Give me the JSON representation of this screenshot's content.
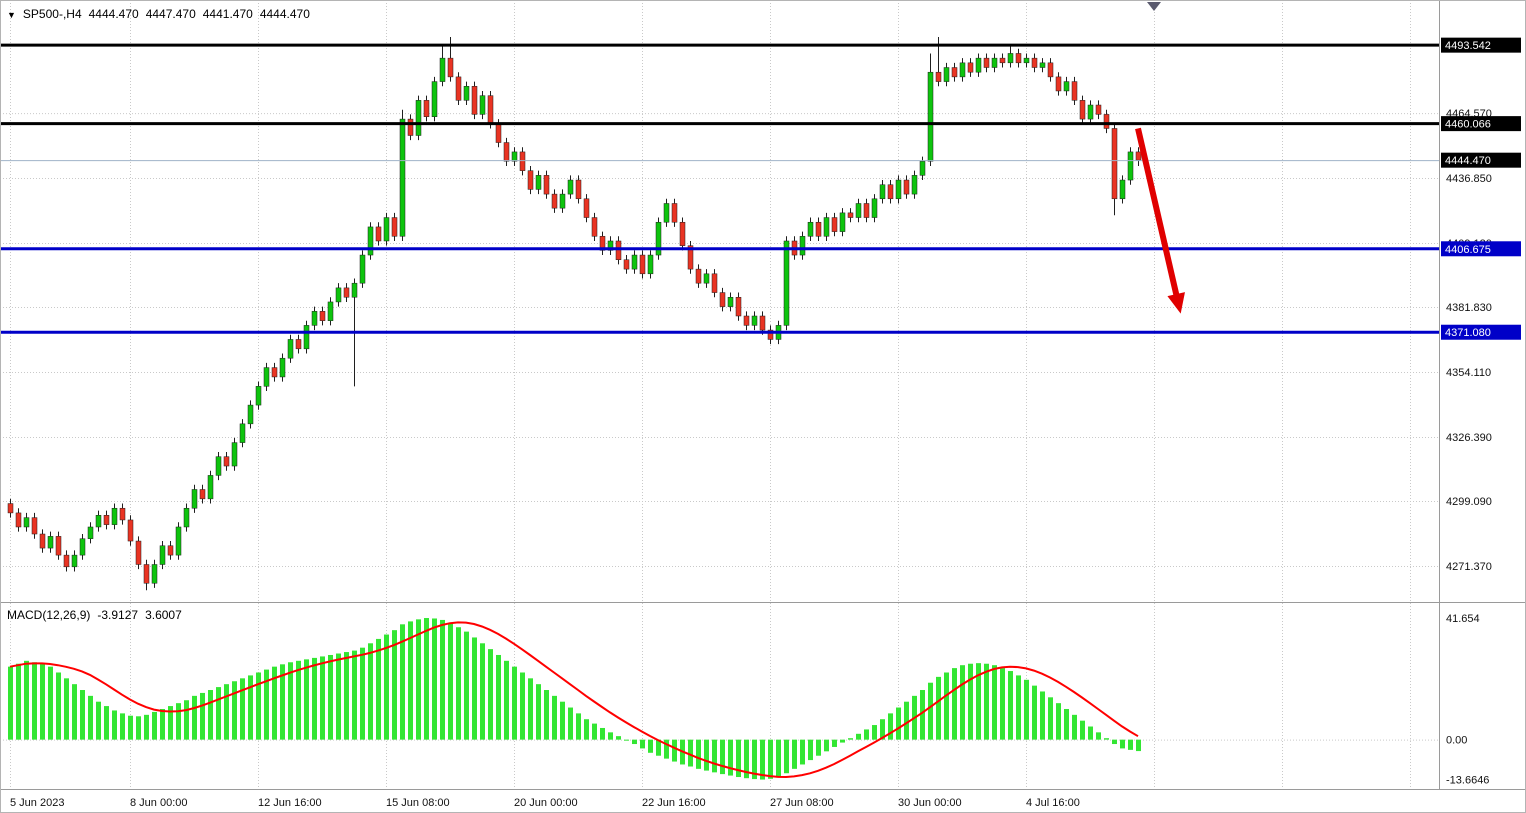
{
  "symbol_info": {
    "dropdown_icon": "▼",
    "symbol": "SP500-,H4",
    "open": "4444.470",
    "high": "4447.470",
    "low": "4441.470",
    "close": "4444.470"
  },
  "macd_info": {
    "label": "MACD(12,26,9)",
    "main_value": "-3.9127",
    "signal_value": "3.6007"
  },
  "colors": {
    "background": "#FFFFFF",
    "grid": "#C9C9C9",
    "candle_up": "#0EC40E",
    "candle_down": "#E93423",
    "candle_wick": "#1F1F1F",
    "candle_border": "#1F1F1F",
    "macd_histogram": "#33E633",
    "macd_signal": "#FF0000",
    "current_price_line": "#9FB3C8",
    "current_price_badge_bg": "#000000",
    "arrow": "#E00000",
    "shift_marker": "#5A5A6E",
    "separator": "#9A9A9A",
    "frame": "#B4B4B4"
  },
  "chart_data": [
    {
      "type": "candlestick",
      "title": "SP500-,H4",
      "x_labels": [
        {
          "text": "5 Jun 2023",
          "bar": 0
        },
        {
          "text": "8 Jun 00:00",
          "bar": 15
        },
        {
          "text": "12 Jun 16:00",
          "bar": 31
        },
        {
          "text": "15 Jun 08:00",
          "bar": 47
        },
        {
          "text": "20 Jun 00:00",
          "bar": 63
        },
        {
          "text": "22 Jun 16:00",
          "bar": 79
        },
        {
          "text": "27 Jun 08:00",
          "bar": 95
        },
        {
          "text": "30 Jun 00:00",
          "bar": 111
        },
        {
          "text": "4 Jul 16:00",
          "bar": 127
        }
      ],
      "extra_grid_bars": [
        143,
        159,
        175
      ],
      "shift_marker_bar": 143,
      "y_axis_range": [
        4256.0,
        4512.8
      ],
      "price_gridlines": [
        {
          "text": "4464.570",
          "value": 4464.57
        },
        {
          "text": "4436.850",
          "value": 4436.85
        },
        {
          "text": "4409.120",
          "value": 4409.12
        },
        {
          "text": "4381.830",
          "value": 4381.83
        },
        {
          "text": "4354.110",
          "value": 4354.11
        },
        {
          "text": "4326.390",
          "value": 4326.39
        },
        {
          "text": "4299.090",
          "value": 4299.09
        },
        {
          "text": "4271.370",
          "value": 4271.37
        }
      ],
      "horizontal_lines": [
        {
          "price": 4493.542,
          "label": "4493.542",
          "color": "#000000"
        },
        {
          "price": 4460.066,
          "label": "4460.066",
          "color": "#000000"
        },
        {
          "price": 4406.675,
          "label": "4406.675",
          "color": "#0000C8"
        },
        {
          "price": 4371.08,
          "label": "4371.080",
          "color": "#0000C8"
        }
      ],
      "current_price": {
        "price": 4444.47,
        "label": "4444.470"
      },
      "annotation_arrow": {
        "from_bar": 141,
        "from_price": 4458,
        "to_bar": 146,
        "to_price": 4384
      },
      "candles": [
        [
          4298,
          4300,
          4292,
          4294
        ],
        [
          4294,
          4296,
          4286,
          4288
        ],
        [
          4288,
          4294,
          4286,
          4292
        ],
        [
          4292,
          4294,
          4283,
          4285
        ],
        [
          4285,
          4287,
          4277,
          4279
        ],
        [
          4279,
          4286,
          4277,
          4284
        ],
        [
          4284,
          4286,
          4274,
          4276
        ],
        [
          4276,
          4278,
          4269,
          4271
        ],
        [
          4271,
          4278,
          4269,
          4276
        ],
        [
          4276,
          4285,
          4274,
          4283
        ],
        [
          4283,
          4290,
          4281,
          4288
        ],
        [
          4288,
          4295,
          4286,
          4293
        ],
        [
          4293,
          4295,
          4287,
          4289
        ],
        [
          4289,
          4298,
          4287,
          4296
        ],
        [
          4296,
          4298,
          4289,
          4291
        ],
        [
          4291,
          4293,
          4280,
          4282
        ],
        [
          4282,
          4284,
          4270,
          4272
        ],
        [
          4272,
          4274,
          4261,
          4264
        ],
        [
          4264,
          4274,
          4262,
          4272
        ],
        [
          4272,
          4282,
          4270,
          4280
        ],
        [
          4280,
          4282,
          4274,
          4276
        ],
        [
          4276,
          4290,
          4274,
          4288
        ],
        [
          4288,
          4298,
          4286,
          4296
        ],
        [
          4296,
          4306,
          4294,
          4304
        ],
        [
          4304,
          4306,
          4298,
          4300
        ],
        [
          4300,
          4312,
          4298,
          4310
        ],
        [
          4310,
          4320,
          4308,
          4318
        ],
        [
          4318,
          4320,
          4312,
          4314
        ],
        [
          4314,
          4326,
          4312,
          4324
        ],
        [
          4324,
          4334,
          4322,
          4332
        ],
        [
          4332,
          4342,
          4330,
          4340
        ],
        [
          4340,
          4350,
          4338,
          4348
        ],
        [
          4348,
          4358,
          4346,
          4356
        ],
        [
          4356,
          4358,
          4350,
          4352
        ],
        [
          4352,
          4362,
          4350,
          4360
        ],
        [
          4360,
          4370,
          4358,
          4368
        ],
        [
          4368,
          4370,
          4362,
          4364
        ],
        [
          4364,
          4376,
          4362,
          4374
        ],
        [
          4374,
          4382,
          4372,
          4380
        ],
        [
          4380,
          4382,
          4374,
          4376
        ],
        [
          4376,
          4386,
          4374,
          4384
        ],
        [
          4384,
          4392,
          4382,
          4390
        ],
        [
          4390,
          4392,
          4384,
          4386
        ],
        [
          4386,
          4394,
          4348,
          4392
        ],
        [
          4392,
          4406,
          4390,
          4404
        ],
        [
          4404,
          4418,
          4402,
          4416
        ],
        [
          4416,
          4418,
          4408,
          4410
        ],
        [
          4410,
          4422,
          4408,
          4420
        ],
        [
          4420,
          4422,
          4410,
          4412
        ],
        [
          4412,
          4466,
          4410,
          4462
        ],
        [
          4462,
          4464,
          4453,
          4455
        ],
        [
          4455,
          4472,
          4453,
          4470
        ],
        [
          4470,
          4472,
          4461,
          4463
        ],
        [
          4463,
          4480,
          4461,
          4478
        ],
        [
          4478,
          4494,
          4476,
          4488
        ],
        [
          4488,
          4497,
          4478,
          4480
        ],
        [
          4480,
          4482,
          4468,
          4470
        ],
        [
          4470,
          4478,
          4468,
          4476
        ],
        [
          4476,
          4478,
          4462,
          4464
        ],
        [
          4464,
          4474,
          4462,
          4472
        ],
        [
          4472,
          4474,
          4458,
          4460
        ],
        [
          4460,
          4462,
          4450,
          4452
        ],
        [
          4452,
          4454,
          4442,
          4444
        ],
        [
          4444,
          4450,
          4442,
          4448
        ],
        [
          4448,
          4450,
          4438,
          4440
        ],
        [
          4440,
          4442,
          4430,
          4432
        ],
        [
          4432,
          4440,
          4430,
          4438
        ],
        [
          4438,
          4440,
          4428,
          4430
        ],
        [
          4430,
          4432,
          4422,
          4424
        ],
        [
          4424,
          4432,
          4422,
          4430
        ],
        [
          4430,
          4438,
          4428,
          4436
        ],
        [
          4436,
          4438,
          4426,
          4428
        ],
        [
          4428,
          4430,
          4418,
          4420
        ],
        [
          4420,
          4422,
          4410,
          4412
        ],
        [
          4412,
          4414,
          4404,
          4406
        ],
        [
          4406,
          4412,
          4404,
          4410
        ],
        [
          4410,
          4412,
          4400,
          4402
        ],
        [
          4402,
          4404,
          4396,
          4398
        ],
        [
          4398,
          4406,
          4396,
          4404
        ],
        [
          4404,
          4406,
          4394,
          4396
        ],
        [
          4396,
          4406,
          4394,
          4404
        ],
        [
          4404,
          4420,
          4402,
          4418
        ],
        [
          4418,
          4428,
          4416,
          4426
        ],
        [
          4426,
          4428,
          4416,
          4418
        ],
        [
          4418,
          4420,
          4406,
          4408
        ],
        [
          4408,
          4410,
          4396,
          4398
        ],
        [
          4398,
          4400,
          4390,
          4392
        ],
        [
          4392,
          4398,
          4390,
          4396
        ],
        [
          4396,
          4398,
          4386,
          4388
        ],
        [
          4388,
          4390,
          4380,
          4382
        ],
        [
          4382,
          4388,
          4380,
          4386
        ],
        [
          4386,
          4388,
          4376,
          4378
        ],
        [
          4378,
          4380,
          4372,
          4374
        ],
        [
          4374,
          4380,
          4372,
          4378
        ],
        [
          4378,
          4380,
          4370,
          4372
        ],
        [
          4372,
          4374,
          4366,
          4368
        ],
        [
          4368,
          4376,
          4366,
          4374
        ],
        [
          4374,
          4412,
          4372,
          4410
        ],
        [
          4410,
          4412,
          4402,
          4404
        ],
        [
          4404,
          4414,
          4402,
          4412
        ],
        [
          4412,
          4420,
          4410,
          4418
        ],
        [
          4418,
          4420,
          4410,
          4412
        ],
        [
          4412,
          4422,
          4410,
          4420
        ],
        [
          4420,
          4422,
          4412,
          4414
        ],
        [
          4414,
          4424,
          4412,
          4422
        ],
        [
          4422,
          4424,
          4418,
          4420
        ],
        [
          4420,
          4428,
          4418,
          4426
        ],
        [
          4426,
          4428,
          4418,
          4420
        ],
        [
          4420,
          4430,
          4418,
          4428
        ],
        [
          4428,
          4436,
          4426,
          4434
        ],
        [
          4434,
          4436,
          4426,
          4428
        ],
        [
          4428,
          4438,
          4426,
          4436
        ],
        [
          4436,
          4438,
          4428,
          4430
        ],
        [
          4430,
          4440,
          4428,
          4438
        ],
        [
          4438,
          4446,
          4436,
          4444
        ],
        [
          4444,
          4490,
          4442,
          4482
        ],
        [
          4482,
          4497,
          4476,
          4478
        ],
        [
          4478,
          4486,
          4476,
          4484
        ],
        [
          4484,
          4486,
          4478,
          4480
        ],
        [
          4480,
          4488,
          4478,
          4486
        ],
        [
          4486,
          4488,
          4480,
          4482
        ],
        [
          4482,
          4490,
          4480,
          4488
        ],
        [
          4488,
          4490,
          4482,
          4484
        ],
        [
          4484,
          4490,
          4482,
          4488
        ],
        [
          4488,
          4490,
          4484,
          4486
        ],
        [
          4486,
          4494,
          4484,
          4490
        ],
        [
          4490,
          4492,
          4484,
          4486
        ],
        [
          4486,
          4490,
          4484,
          4488
        ],
        [
          4488,
          4490,
          4482,
          4484
        ],
        [
          4484,
          4488,
          4482,
          4486
        ],
        [
          4486,
          4488,
          4478,
          4480
        ],
        [
          4480,
          4482,
          4472,
          4474
        ],
        [
          4474,
          4480,
          4472,
          4478
        ],
        [
          4478,
          4480,
          4468,
          4470
        ],
        [
          4470,
          4472,
          4460,
          4462
        ],
        [
          4462,
          4470,
          4460,
          4468
        ],
        [
          4468,
          4470,
          4462,
          4464
        ],
        [
          4464,
          4466,
          4456,
          4458
        ],
        [
          4458,
          4460,
          4421,
          4428
        ],
        [
          4428,
          4438,
          4426,
          4436
        ],
        [
          4436,
          4450,
          4434,
          4448
        ],
        [
          4448,
          4450,
          4442,
          4444.5
        ]
      ]
    },
    {
      "type": "bar",
      "name": "MACD(12,26,9)",
      "main_value": -3.9127,
      "signal_value": 3.6007,
      "signal_period": 9,
      "y_axis_range": [
        -16.9,
        46.8
      ],
      "y_labels": [
        {
          "text": "41.654",
          "value": 41.654
        },
        {
          "text": "0.00",
          "value": 0
        },
        {
          "text": "-13.6646",
          "value": -13.6646
        }
      ],
      "values": [
        25,
        26,
        27,
        26.5,
        26,
        25,
        23,
        21,
        19,
        17,
        15,
        13,
        11.5,
        10,
        9,
        8.2,
        8,
        8.5,
        9.5,
        10.5,
        11.5,
        12.5,
        13.5,
        15,
        16,
        17,
        18,
        19,
        20,
        21,
        22,
        23,
        24,
        25,
        25.8,
        26.5,
        27,
        27.5,
        28,
        28.5,
        29,
        29.5,
        30,
        30.5,
        31.5,
        33,
        34.5,
        36,
        37.5,
        39.5,
        40.5,
        41.2,
        41.654,
        41.5,
        41,
        40,
        38.5,
        37,
        35,
        33,
        31,
        29,
        27,
        25,
        23,
        21,
        19,
        17,
        15,
        13,
        11,
        9,
        7,
        5.5,
        4,
        2.5,
        1.2,
        0,
        -1.5,
        -3,
        -4.5,
        -5.5,
        -6.5,
        -7.5,
        -8.5,
        -9.2,
        -10,
        -10.6,
        -11.2,
        -11.8,
        -12.3,
        -12.8,
        -13.2,
        -13.5,
        -13.6646,
        -13.4,
        -12.8,
        -11.5,
        -10,
        -8.5,
        -7,
        -5.5,
        -4,
        -2.5,
        -1,
        0.5,
        2,
        3.5,
        5,
        7,
        9,
        11,
        13,
        15,
        17,
        19.5,
        21.5,
        23,
        24.5,
        25.5,
        26,
        26.2,
        26,
        25.5,
        24.5,
        23.5,
        22,
        20.5,
        18.5,
        16.5,
        14.5,
        12.5,
        10.5,
        8.5,
        6.5,
        4.5,
        2.5,
        0.5,
        -1.5,
        -3,
        -3.5,
        -3.9127
      ]
    }
  ]
}
